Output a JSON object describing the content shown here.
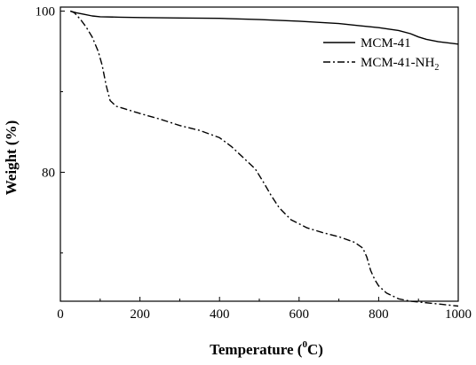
{
  "chart_data": {
    "type": "line",
    "title": "",
    "xlabel": "Temperature (0C)",
    "xlabel_parts": {
      "before": "Temperature (",
      "sup": "0",
      "after": "C)"
    },
    "ylabel": "Weight (%)",
    "xlim": [
      0,
      1000
    ],
    "ylim": [
      64,
      100.5
    ],
    "x_ticks": [
      0,
      200,
      400,
      600,
      800,
      1000
    ],
    "x_tick_labels": [
      "0",
      "200",
      "400",
      "600",
      "800",
      "1000"
    ],
    "y_ticks": [
      80,
      100
    ],
    "y_tick_labels": [
      "80",
      "100"
    ],
    "grid": false,
    "legend_position": "top-right",
    "series": [
      {
        "name": "MCM-41",
        "name_parts": {
          "base": "MCM-41",
          "sub": ""
        },
        "line_style": "solid",
        "color": "#000000",
        "x": [
          25,
          40,
          60,
          80,
          100,
          150,
          200,
          300,
          400,
          500,
          600,
          700,
          750,
          800,
          850,
          880,
          900,
          920,
          950,
          1000
        ],
        "y": [
          100.0,
          99.8,
          99.6,
          99.4,
          99.3,
          99.25,
          99.2,
          99.15,
          99.1,
          98.95,
          98.75,
          98.45,
          98.2,
          97.95,
          97.6,
          97.2,
          96.8,
          96.5,
          96.2,
          95.9
        ]
      },
      {
        "name": "MCM-41-NH2",
        "name_parts": {
          "base": "MCM-41-NH",
          "sub": "2"
        },
        "line_style": "dash-dot",
        "color": "#000000",
        "x": [
          25,
          35,
          50,
          65,
          80,
          95,
          105,
          115,
          125,
          140,
          160,
          200,
          250,
          300,
          350,
          400,
          430,
          460,
          490,
          510,
          530,
          550,
          580,
          620,
          660,
          700,
          740,
          760,
          770,
          780,
          790,
          800,
          820,
          850,
          880,
          920,
          960,
          1000
        ],
        "y": [
          100.0,
          99.8,
          99.0,
          98.0,
          96.8,
          95.0,
          93.3,
          90.8,
          88.9,
          88.2,
          87.9,
          87.3,
          86.6,
          85.8,
          85.2,
          84.3,
          83.2,
          81.8,
          80.4,
          78.8,
          77.1,
          75.6,
          74.1,
          73.1,
          72.5,
          72.0,
          71.3,
          70.6,
          69.5,
          67.8,
          66.7,
          65.9,
          65.0,
          64.3,
          64.0,
          63.8,
          63.6,
          63.4
        ]
      }
    ]
  }
}
